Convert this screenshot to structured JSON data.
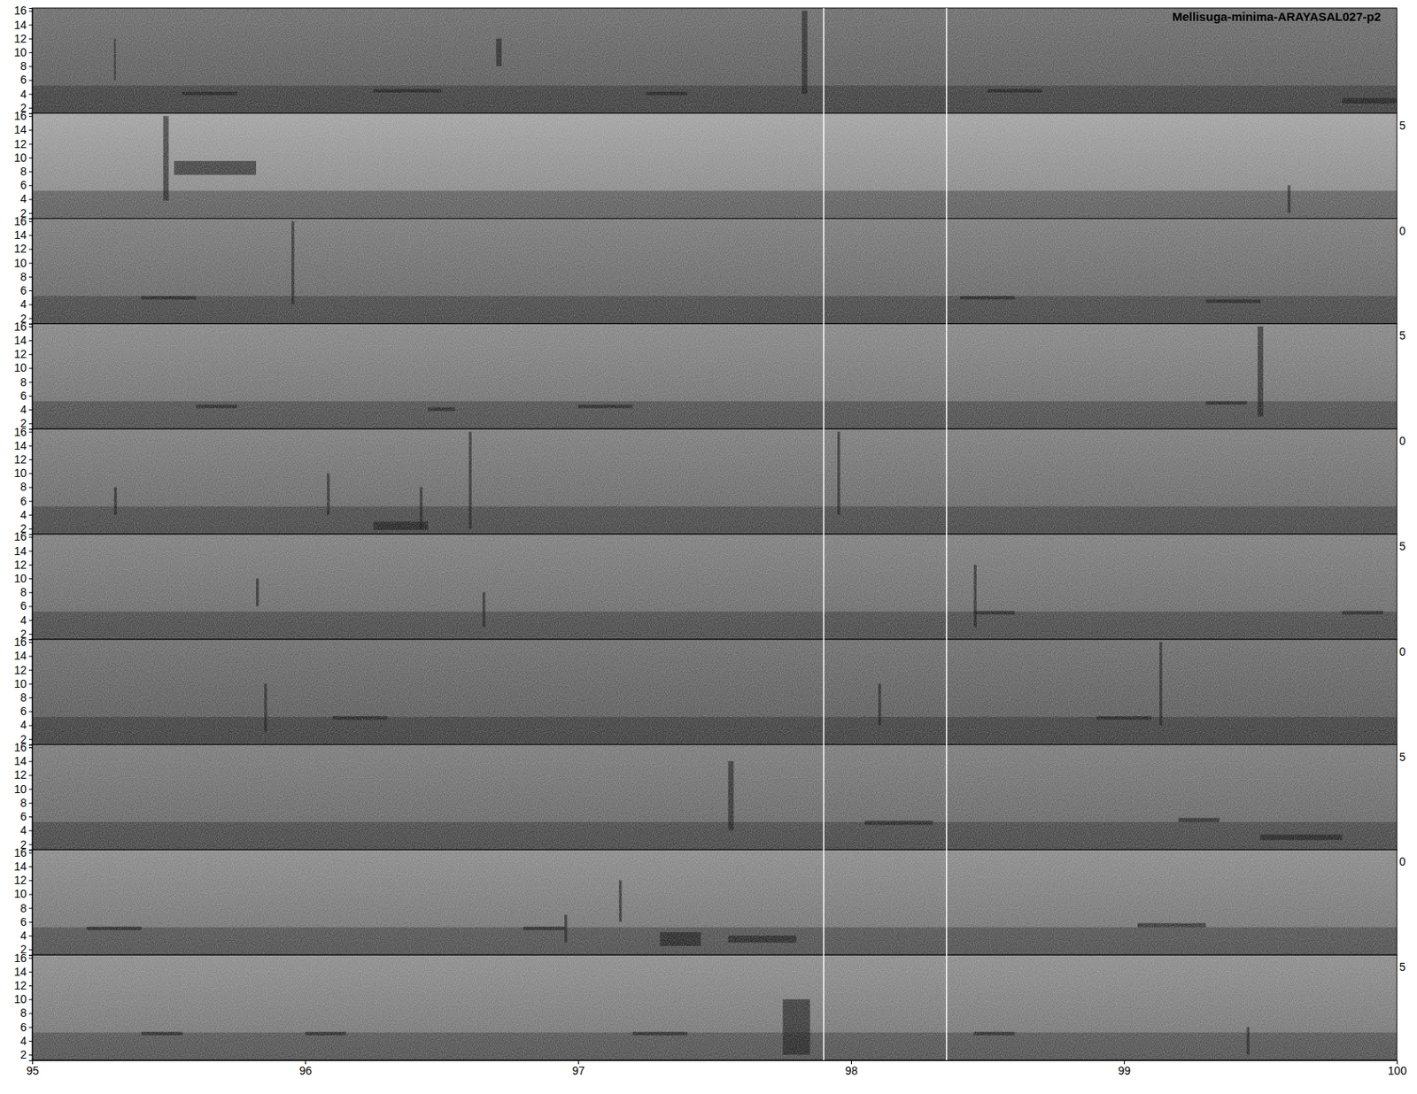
{
  "chart_data": {
    "type": "spectrogram",
    "title": "Mellisuga-minima-ARAYASAL027-p2",
    "xlim": [
      95,
      100
    ],
    "xticks": [
      95,
      96,
      97,
      98,
      99,
      100
    ],
    "ylim": [
      1.2,
      16.4
    ],
    "yticks": [
      2,
      4,
      6,
      8,
      10,
      12,
      14,
      16
    ],
    "markers": [
      97.9,
      98.35
    ],
    "panels": [
      {
        "color": "#6c6c6c",
        "band": [
          1.2,
          5.2
        ],
        "right_label": null,
        "events": [
          {
            "x": [
              95.3,
              95.3
            ],
            "f": [
              6,
              12
            ]
          },
          {
            "x": [
              96.7,
              96.72
            ],
            "f": [
              8,
              12
            ]
          },
          {
            "x": [
              97.82,
              97.84
            ],
            "f": [
              4,
              16
            ]
          },
          {
            "x": [
              95.55,
              95.75
            ],
            "f": [
              3.8,
              4.3
            ]
          },
          {
            "x": [
              96.25,
              96.5
            ],
            "f": [
              4.2,
              4.7
            ]
          },
          {
            "x": [
              97.25,
              97.4
            ],
            "f": [
              3.8,
              4.3
            ]
          },
          {
            "x": [
              98.5,
              98.7
            ],
            "f": [
              4.2,
              4.7
            ]
          },
          {
            "x": [
              99.8,
              100
            ],
            "f": [
              2.6,
              3.4
            ]
          }
        ]
      },
      {
        "color": "#a2a2a2",
        "band": [
          1.2,
          5.2
        ],
        "right_label": "5",
        "events": [
          {
            "x": [
              95.48,
              95.5
            ],
            "f": [
              3.8,
              16
            ]
          },
          {
            "x": [
              95.52,
              95.82
            ],
            "f": [
              7.5,
              9.5
            ]
          },
          {
            "x": [
              99.6,
              99.61
            ],
            "f": [
              2,
              6
            ]
          }
        ]
      },
      {
        "color": "#7a7a7a",
        "band": [
          1.2,
          5.2
        ],
        "right_label": "0",
        "events": [
          {
            "x": [
              95.95,
              95.96
            ],
            "f": [
              4,
              16
            ]
          },
          {
            "x": [
              95.4,
              95.6
            ],
            "f": [
              4.7,
              5.2
            ]
          },
          {
            "x": [
              98.4,
              98.6
            ],
            "f": [
              4.7,
              5.2
            ]
          },
          {
            "x": [
              99.3,
              99.5
            ],
            "f": [
              4.2,
              4.7
            ]
          }
        ]
      },
      {
        "color": "#868686",
        "band": [
          1.2,
          5.2
        ],
        "right_label": "5",
        "events": [
          {
            "x": [
              99.49,
              99.51
            ],
            "f": [
              3,
              16
            ]
          },
          {
            "x": [
              95.6,
              95.75
            ],
            "f": [
              4.2,
              4.7
            ]
          },
          {
            "x": [
              96.45,
              96.55
            ],
            "f": [
              3.8,
              4.3
            ]
          },
          {
            "x": [
              97.0,
              97.2
            ],
            "f": [
              4.2,
              4.7
            ]
          },
          {
            "x": [
              99.3,
              99.45
            ],
            "f": [
              4.7,
              5.2
            ]
          }
        ]
      },
      {
        "color": "#7c7c7c",
        "band": [
          1.2,
          5.2
        ],
        "right_label": "0",
        "events": [
          {
            "x": [
              95.3,
              95.31
            ],
            "f": [
              4,
              8
            ]
          },
          {
            "x": [
              96.08,
              96.09
            ],
            "f": [
              4,
              10
            ]
          },
          {
            "x": [
              96.42,
              96.43
            ],
            "f": [
              2,
              8
            ]
          },
          {
            "x": [
              96.6,
              96.61
            ],
            "f": [
              2,
              16
            ]
          },
          {
            "x": [
              97.95,
              97.96
            ],
            "f": [
              4,
              16
            ]
          },
          {
            "x": [
              96.25,
              96.45
            ],
            "f": [
              1.8,
              3
            ]
          }
        ]
      },
      {
        "color": "#7e7e7e",
        "band": [
          1.2,
          5.2
        ],
        "right_label": "5",
        "events": [
          {
            "x": [
              95.82,
              95.83
            ],
            "f": [
              6,
              10
            ]
          },
          {
            "x": [
              96.65,
              96.66
            ],
            "f": [
              3,
              8
            ]
          },
          {
            "x": [
              98.45,
              98.46
            ],
            "f": [
              3,
              12
            ]
          },
          {
            "x": [
              98.45,
              98.6
            ],
            "f": [
              4.8,
              5.3
            ]
          },
          {
            "x": [
              99.8,
              99.95
            ],
            "f": [
              4.8,
              5.3
            ]
          }
        ]
      },
      {
        "color": "#6c6c6c",
        "band": [
          1.2,
          5.2
        ],
        "right_label": "0",
        "events": [
          {
            "x": [
              95.85,
              95.86
            ],
            "f": [
              3,
              10
            ]
          },
          {
            "x": [
              98.1,
              98.11
            ],
            "f": [
              4,
              10
            ]
          },
          {
            "x": [
              99.13,
              99.14
            ],
            "f": [
              4,
              16
            ]
          },
          {
            "x": [
              96.1,
              96.3
            ],
            "f": [
              4.8,
              5.3
            ]
          },
          {
            "x": [
              98.9,
              99.1
            ],
            "f": [
              4.8,
              5.3
            ]
          }
        ]
      },
      {
        "color": "#7a7a7a",
        "band": [
          1.2,
          5.2
        ],
        "right_label": "5",
        "events": [
          {
            "x": [
              97.55,
              97.57
            ],
            "f": [
              4,
              14
            ]
          },
          {
            "x": [
              98.05,
              98.3
            ],
            "f": [
              4.8,
              5.4
            ]
          },
          {
            "x": [
              99.2,
              99.35
            ],
            "f": [
              5.2,
              5.8
            ]
          },
          {
            "x": [
              99.5,
              99.8
            ],
            "f": [
              2.6,
              3.4
            ]
          }
        ]
      },
      {
        "color": "#8a8a8a",
        "band": [
          1.2,
          5.2
        ],
        "right_label": "0",
        "events": [
          {
            "x": [
              97.3,
              97.45
            ],
            "f": [
              2.5,
              4.5
            ]
          },
          {
            "x": [
              97.55,
              97.8
            ],
            "f": [
              3,
              4
            ]
          },
          {
            "x": [
              96.95,
              96.96
            ],
            "f": [
              3,
              7
            ]
          },
          {
            "x": [
              97.15,
              97.16
            ],
            "f": [
              6,
              12
            ]
          },
          {
            "x": [
              95.2,
              95.4
            ],
            "f": [
              4.8,
              5.3
            ]
          },
          {
            "x": [
              96.8,
              96.95
            ],
            "f": [
              4.8,
              5.3
            ]
          },
          {
            "x": [
              99.05,
              99.3
            ],
            "f": [
              5.2,
              5.8
            ]
          }
        ]
      },
      {
        "color": "#8c8c8c",
        "band": [
          1.2,
          5.2
        ],
        "right_label": "5",
        "events": [
          {
            "x": [
              95.4,
              95.55
            ],
            "f": [
              4.8,
              5.3
            ]
          },
          {
            "x": [
              96.0,
              96.15
            ],
            "f": [
              4.8,
              5.3
            ]
          },
          {
            "x": [
              97.2,
              97.4
            ],
            "f": [
              4.8,
              5.3
            ]
          },
          {
            "x": [
              97.75,
              97.85
            ],
            "f": [
              2,
              10
            ]
          },
          {
            "x": [
              99.45,
              99.46
            ],
            "f": [
              2,
              6
            ]
          },
          {
            "x": [
              98.45,
              98.6
            ],
            "f": [
              4.8,
              5.3
            ]
          }
        ]
      }
    ]
  }
}
